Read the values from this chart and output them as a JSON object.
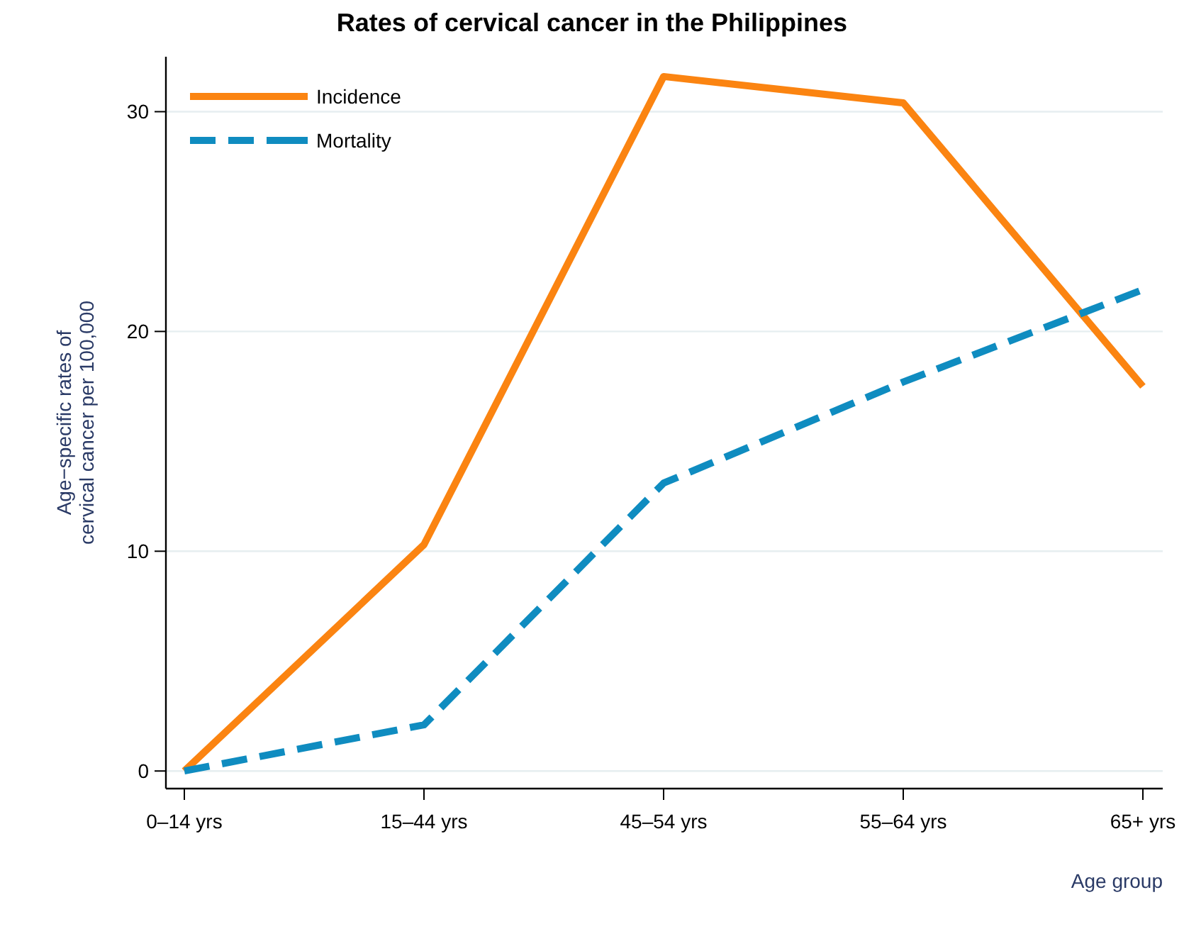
{
  "chart_data": {
    "type": "line",
    "title": "Rates of cervical cancer in the Philippines",
    "xlabel": "Age group",
    "ylabel": "Age−specific rates of cervical cancer per 100,000",
    "categories": [
      "0–14 yrs",
      "15–44 yrs",
      "45–54 yrs",
      "55–64 yrs",
      "65+ yrs"
    ],
    "series": [
      {
        "name": "Incidence",
        "color": "#fb8411",
        "line_style": "solid",
        "values": [
          0,
          10.3,
          31.6,
          30.4,
          17.5
        ]
      },
      {
        "name": "Mortality",
        "color": "#0f8cc0",
        "line_style": "dashed",
        "values": [
          0,
          2.1,
          13.1,
          17.7,
          21.9
        ]
      }
    ],
    "ylim": [
      -0.8,
      32.5
    ],
    "yticks": [
      0,
      10,
      20,
      30
    ],
    "grid": "y",
    "legend": "top left"
  }
}
